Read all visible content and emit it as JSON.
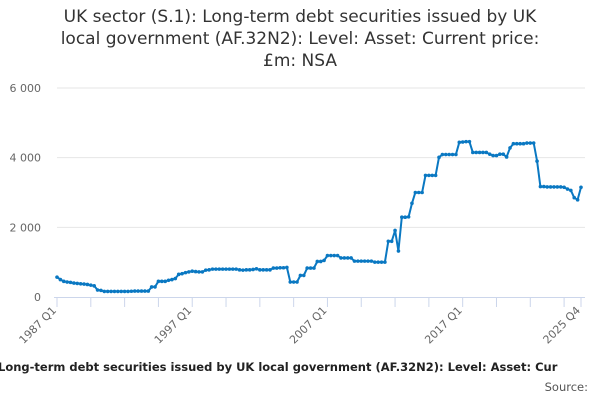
{
  "chart_data": {
    "type": "line",
    "title": "UK sector (S.1): Long-term debt securities issued by UK local government (AF.32N2): Level: Asset: Current price: £m: NSA",
    "title_lines": [
      "UK sector (S.1): Long-term debt securities issued by UK",
      "local government (AF.32N2): Level: Asset: Current price:",
      "£m: NSA"
    ],
    "xlabel": "",
    "ylabel": "",
    "x_start": "1987 Q1",
    "x_end": "2025 Q4",
    "frequency": "quarterly",
    "x_tick_labels": [
      "1987 Q1",
      "1997 Q1",
      "2007 Q1",
      "2017 Q1",
      "2025 Q4"
    ],
    "y_tick_labels": [
      "0",
      "2 000",
      "4 000",
      "6 000"
    ],
    "ylim": [
      0,
      6000
    ],
    "grid": true,
    "color": "#0a78c2",
    "values": [
      570,
      500,
      450,
      430,
      420,
      400,
      390,
      380,
      370,
      360,
      340,
      320,
      200,
      190,
      160,
      160,
      160,
      160,
      160,
      160,
      160,
      160,
      165,
      170,
      170,
      170,
      170,
      170,
      290,
      290,
      450,
      450,
      450,
      480,
      500,
      530,
      650,
      670,
      700,
      720,
      740,
      730,
      720,
      720,
      770,
      780,
      800,
      800,
      800,
      800,
      800,
      800,
      800,
      800,
      780,
      770,
      780,
      780,
      790,
      810,
      780,
      780,
      780,
      780,
      830,
      830,
      840,
      840,
      850,
      430,
      430,
      430,
      620,
      620,
      830,
      830,
      830,
      1020,
      1020,
      1050,
      1190,
      1190,
      1190,
      1190,
      1120,
      1120,
      1120,
      1120,
      1030,
      1030,
      1030,
      1030,
      1030,
      1030,
      1000,
      1000,
      1000,
      1000,
      1600,
      1600,
      1910,
      1320,
      2290,
      2290,
      2300,
      2690,
      3000,
      3000,
      3000,
      3490,
      3490,
      3490,
      3490,
      4010,
      4090,
      4090,
      4090,
      4090,
      4090,
      4440,
      4450,
      4460,
      4460,
      4150,
      4150,
      4150,
      4150,
      4150,
      4100,
      4060,
      4060,
      4100,
      4100,
      4020,
      4280,
      4400,
      4400,
      4400,
      4400,
      4420,
      4420,
      4420,
      3900,
      3170,
      3170,
      3160,
      3160,
      3160,
      3160,
      3160,
      3150,
      3100,
      3060,
      2850,
      2790,
      3150
    ]
  },
  "footer": {
    "caption": "Long-term debt securities issued by UK local government (AF.32N2): Level: Asset: Cur",
    "source_label": "Source:"
  }
}
